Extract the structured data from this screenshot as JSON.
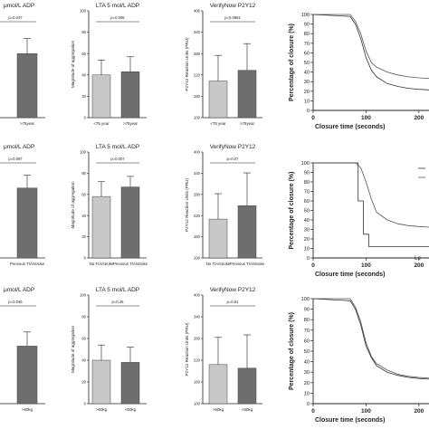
{
  "chart_data": [
    {
      "type": "bar",
      "panel": "r1c1",
      "title": "μmol/L ADP",
      "xlabel": "",
      "ylabel": "",
      "categories": [
        "",
        ">75year"
      ],
      "series": [
        {
          "values": [
            null,
            60
          ],
          "error": [
            null,
            14
          ],
          "colors": [
            "#c8c8c8",
            "#6e6e6e"
          ]
        }
      ],
      "ylim": [
        0,
        100
      ],
      "pvalue": "p=0.047"
    },
    {
      "type": "bar",
      "panel": "r1c2",
      "title": "LTA 5 mol/L ADP",
      "ylabel": "Magnitude of aggregation",
      "categories": [
        "<75 year",
        ">75year"
      ],
      "series": [
        {
          "values": [
            40,
            43
          ],
          "error": [
            14,
            14
          ],
          "colors": [
            "#c8c8c8",
            "#6e6e6e"
          ]
        }
      ],
      "ylim": [
        0,
        100
      ],
      "pvalue": "p=0.005"
    },
    {
      "type": "bar",
      "panel": "r1c3",
      "title": "VerifyNow P2Y12",
      "ylabel": "P2Y12 Reaction Units (PRU)",
      "categories": [
        "<75 year",
        ">75year"
      ],
      "series": [
        {
          "values": [
            203,
            233
          ],
          "error": [
            72,
            75
          ],
          "colors": [
            "#c8c8c8",
            "#6e6e6e"
          ]
        }
      ],
      "ylim": [
        100,
        400
      ],
      "pvalue": "p=0.0881"
    },
    {
      "type": "line",
      "panel": "r1c4",
      "ylabel": "Percentage of closure (%)",
      "xlabel": "Closure time (seconds)",
      "ylim": [
        0,
        100
      ],
      "xlim": [
        0,
        230
      ],
      "xticks": [
        0,
        100,
        200
      ],
      "xticklabels": [
        "0",
        "100",
        "200"
      ],
      "yticks": [
        0,
        10,
        20,
        30,
        40,
        50,
        60,
        70,
        80,
        90,
        100
      ],
      "series": [
        {
          "x": [
            0,
            70,
            80,
            90,
            100,
            110,
            120,
            140,
            160,
            180,
            200,
            230
          ],
          "y": [
            100,
            100,
            93,
            80,
            62,
            50,
            45,
            40,
            37,
            35,
            34,
            33
          ]
        },
        {
          "x": [
            0,
            70,
            80,
            90,
            100,
            110,
            120,
            140,
            160,
            180,
            200,
            230
          ],
          "y": [
            100,
            98,
            90,
            75,
            55,
            42,
            35,
            28,
            25,
            23,
            22,
            21
          ]
        }
      ]
    },
    {
      "type": "bar",
      "panel": "r2c1",
      "title": "μmol/L ADP",
      "categories": [
        "",
        "Previous TIA/stroke"
      ],
      "series": [
        {
          "values": [
            null,
            66
          ],
          "error": [
            null,
            12
          ],
          "colors": [
            "#c8c8c8",
            "#6e6e6e"
          ]
        }
      ],
      "ylim": [
        0,
        100
      ],
      "pvalue": "p=0.097"
    },
    {
      "type": "bar",
      "panel": "r2c2",
      "title": "LTA 5 mol/L ADP",
      "ylabel": "Magnitude of aggregation",
      "categories": [
        "No TIA/stroke",
        "Previous TIA/stroke"
      ],
      "series": [
        {
          "values": [
            58,
            67
          ],
          "error": [
            14,
            10
          ],
          "colors": [
            "#c8c8c8",
            "#6e6e6e"
          ]
        }
      ],
      "ylim": [
        0,
        100
      ],
      "pvalue": "p=0.007"
    },
    {
      "type": "bar",
      "panel": "r2c3",
      "title": "VerifyNow P2Y12",
      "ylabel": "P2Y12 Reaction Units (PRU)",
      "categories": [
        "No TIA/stroke",
        "Previous TIA/stroke"
      ],
      "series": [
        {
          "values": [
            210,
            248
          ],
          "error": [
            72,
            93
          ],
          "colors": [
            "#c8c8c8",
            "#6e6e6e"
          ]
        }
      ],
      "ylim": [
        100,
        400
      ],
      "pvalue": "p=0.07"
    },
    {
      "type": "line",
      "panel": "r2c4",
      "ylabel": "Percentage of closure (%)",
      "xlabel": "Closure time (seconds)",
      "ylim": [
        0,
        100
      ],
      "xlim": [
        0,
        230
      ],
      "xticks": [
        0,
        100,
        200
      ],
      "xticklabels": [
        "0",
        "100",
        "200"
      ],
      "yticks": [
        0,
        10,
        20,
        30,
        40,
        50,
        60,
        70,
        80,
        90,
        100
      ],
      "legend_visible": "Le",
      "series": [
        {
          "x": [
            0,
            80,
            90,
            100,
            110,
            120,
            140,
            160,
            180,
            200,
            230
          ],
          "y": [
            100,
            100,
            95,
            80,
            62,
            48,
            40,
            36,
            34,
            33,
            32
          ]
        },
        {
          "x": [
            0,
            85,
            85,
            95,
            95,
            105,
            105,
            115,
            115,
            230
          ],
          "y": [
            100,
            100,
            60,
            60,
            25,
            25,
            12,
            12,
            12,
            12
          ]
        }
      ]
    },
    {
      "type": "bar",
      "panel": "r3c1",
      "title": "μmol/L ADP",
      "categories": [
        "",
        ">60kg"
      ],
      "series": [
        {
          "values": [
            null,
            53
          ],
          "error": [
            null,
            13
          ],
          "colors": [
            "#c8c8c8",
            "#6e6e6e"
          ]
        }
      ],
      "ylim": [
        0,
        100
      ],
      "pvalue": "p=0.046"
    },
    {
      "type": "bar",
      "panel": "r3c2",
      "title": "LTA 5 mol/L ADP",
      "ylabel": "Magnitude of aggregation",
      "categories": [
        ">60kg",
        "<60kg"
      ],
      "series": [
        {
          "values": [
            40,
            38
          ],
          "error": [
            14,
            14
          ],
          "colors": [
            "#c8c8c8",
            "#6e6e6e"
          ]
        }
      ],
      "ylim": [
        0,
        100
      ],
      "pvalue": "p=0.45"
    },
    {
      "type": "bar",
      "panel": "r3c3",
      "title": "VerifyNow P2Y12",
      "ylabel": "P2Y12 Reaction Units (PRU)",
      "categories": [
        ">60kg",
        "<60kg"
      ],
      "series": [
        {
          "values": [
            208,
            198
          ],
          "error": [
            75,
            92
          ],
          "colors": [
            "#c8c8c8",
            "#6e6e6e"
          ]
        }
      ],
      "ylim": [
        100,
        400
      ],
      "pvalue": "p=0.61"
    },
    {
      "type": "line",
      "panel": "r3c4",
      "ylabel": "Percentage of closure (%)",
      "xlabel": "Closure time (seconds)",
      "ylim": [
        0,
        100
      ],
      "xlim": [
        0,
        230
      ],
      "xticks": [
        0,
        100,
        200
      ],
      "xticklabels": [
        "0",
        "100",
        "200"
      ],
      "yticks": [
        0,
        10,
        20,
        30,
        40,
        50,
        60,
        70,
        80,
        90,
        100
      ],
      "series": [
        {
          "x": [
            0,
            70,
            80,
            90,
            100,
            110,
            120,
            140,
            160,
            180,
            200,
            230
          ],
          "y": [
            100,
            100,
            92,
            78,
            58,
            45,
            38,
            32,
            28,
            26,
            25,
            24
          ]
        },
        {
          "x": [
            0,
            70,
            80,
            90,
            100,
            110,
            120,
            140,
            160,
            180,
            200,
            230
          ],
          "y": [
            100,
            98,
            90,
            75,
            55,
            44,
            36,
            30,
            27,
            25,
            24,
            23
          ]
        }
      ]
    }
  ]
}
